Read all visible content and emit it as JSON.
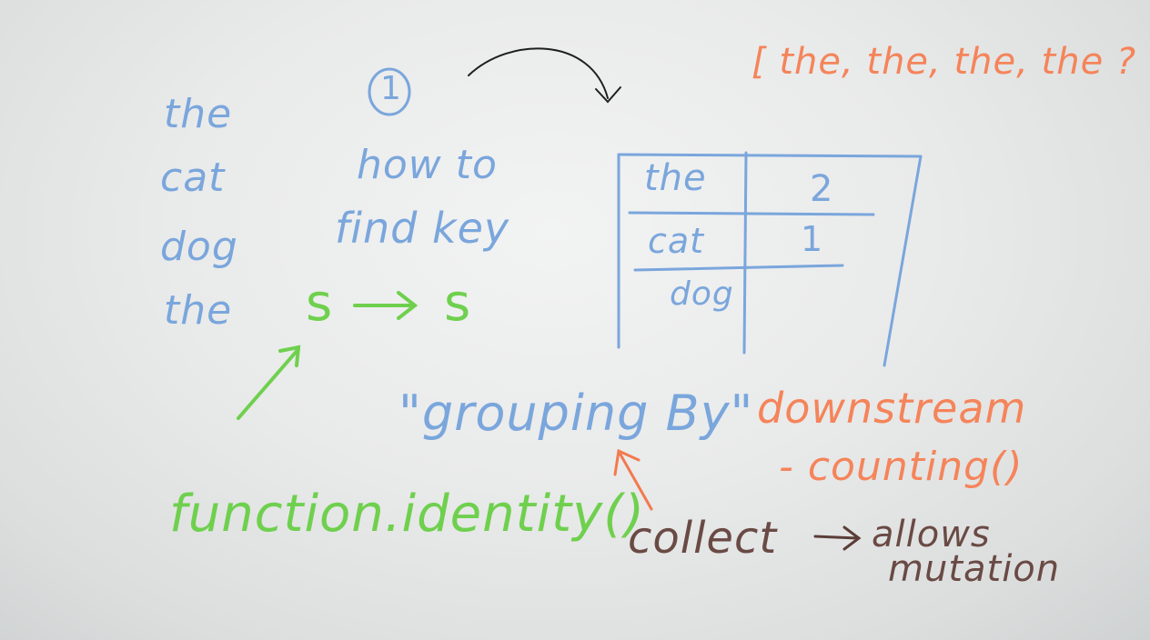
{
  "words_column": [
    "the",
    "cat",
    "dog",
    "the"
  ],
  "step_label": "1",
  "how_to_line1": "how to",
  "how_to_line2": "find key",
  "mapping": {
    "from": "s",
    "to": "s"
  },
  "grouping": "\"grouping By\"",
  "function_identity": "function.identity()",
  "list_note": "[ the, the, the, the ?",
  "table": {
    "rows": [
      {
        "key": "the",
        "count": "2"
      },
      {
        "key": "cat",
        "count": "1"
      },
      {
        "key": "dog",
        "count": ""
      }
    ]
  },
  "downstream": "downstream",
  "counting": "- counting()",
  "collect": "collect",
  "allows_line1": "→ allows",
  "allows_line2": "mutation",
  "colors": {
    "blue_marker": "#7aa6dc",
    "green_marker": "#6fd04e",
    "orange_marker": "#f5845a",
    "brown_marker": "#6a4a44",
    "board": "#eceded"
  }
}
